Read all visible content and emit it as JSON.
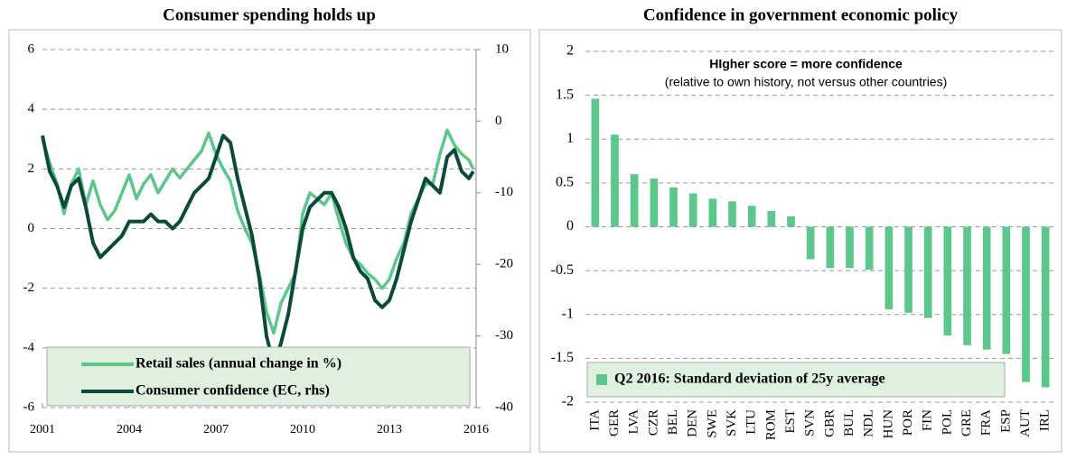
{
  "chart_data": [
    {
      "type": "line",
      "title": "Consumer spending holds up",
      "x": [
        2001,
        2001.25,
        2001.5,
        2001.75,
        2002,
        2002.25,
        2002.5,
        2002.75,
        2003,
        2003.25,
        2003.5,
        2003.75,
        2004,
        2004.25,
        2004.5,
        2004.75,
        2005,
        2005.25,
        2005.5,
        2005.75,
        2006,
        2006.25,
        2006.5,
        2006.75,
        2007,
        2007.25,
        2007.5,
        2007.75,
        2008,
        2008.25,
        2008.5,
        2008.75,
        2009,
        2009.25,
        2009.5,
        2009.75,
        2010,
        2010.25,
        2010.5,
        2010.75,
        2011,
        2011.25,
        2011.5,
        2011.75,
        2012,
        2012.25,
        2012.5,
        2012.75,
        2013,
        2013.25,
        2013.5,
        2013.75,
        2014,
        2014.25,
        2014.5,
        2014.75,
        2015,
        2015.25,
        2015.5,
        2015.75,
        2015.9
      ],
      "series": [
        {
          "name": "Retail sales (annual change in %)",
          "color": "#5cc78a",
          "values": [
            3.0,
            2.2,
            1.5,
            0.5,
            1.5,
            2.0,
            0.8,
            1.6,
            0.8,
            0.3,
            0.6,
            1.2,
            1.8,
            1.0,
            1.5,
            1.8,
            1.2,
            1.6,
            2.0,
            1.7,
            2.0,
            2.3,
            2.6,
            3.2,
            2.5,
            2.0,
            1.6,
            0.6,
            0.0,
            -0.5,
            -1.5,
            -2.8,
            -3.5,
            -2.5,
            -2.0,
            -1.5,
            0.5,
            1.2,
            1.0,
            0.8,
            1.2,
            0.3,
            -0.5,
            -1.0,
            -1.2,
            -1.5,
            -1.7,
            -2.0,
            -1.7,
            -1.0,
            -0.5,
            0.5,
            1.0,
            1.5,
            1.5,
            2.5,
            3.3,
            2.8,
            2.5,
            2.3,
            2.0
          ]
        },
        {
          "name": "Consumer confidence (EC, rhs)",
          "color": "#0b4a3b",
          "axis": "y2",
          "values": [
            -2,
            -7,
            -9,
            -12,
            -9,
            -8,
            -12,
            -17,
            -19,
            -18,
            -17,
            -16,
            -14,
            -14,
            -14,
            -13,
            -14,
            -14,
            -15,
            -14,
            -12,
            -10,
            -9,
            -8,
            -5,
            -2,
            -3,
            -8,
            -12,
            -16,
            -22,
            -30,
            -34,
            -31,
            -27,
            -21,
            -15,
            -12,
            -11,
            -10,
            -10,
            -12,
            -15,
            -19,
            -21,
            -22,
            -25,
            -26,
            -25,
            -22,
            -18,
            -14,
            -11,
            -8,
            -9,
            -10,
            -5,
            -4,
            -7,
            -8,
            -7
          ]
        }
      ],
      "xlim": [
        2001,
        2016
      ],
      "xticks": [
        2001,
        2004,
        2007,
        2010,
        2013,
        2016
      ],
      "ylim": [
        -6,
        6
      ],
      "yticks": [
        6,
        4,
        2,
        0,
        -2,
        -4,
        -6
      ],
      "y2lim": [
        -40,
        10
      ],
      "y2ticks": [
        10,
        0,
        -10,
        -20,
        -30,
        -40
      ],
      "grid": true,
      "legend": "lower left"
    },
    {
      "type": "bar",
      "title": "Confidence in government economic policy",
      "annotations": [
        "HIgher score = more confidence",
        "(relative to own history, not versus other countries)"
      ],
      "categories": [
        "ITA",
        "GER",
        "LVA",
        "CZR",
        "BEL",
        "DEN",
        "SWE",
        "SVK",
        "LTU",
        "ROM",
        "EST",
        "SVN",
        "GBR",
        "BUL",
        "NDL",
        "HUN",
        "POR",
        "FIN",
        "POL",
        "GRE",
        "FRA",
        "ESP",
        "AUT",
        "IRL"
      ],
      "series": [
        {
          "name": "Q2 2016: Standard deviation of 25y average",
          "color": "#5cc78a",
          "values": [
            1.46,
            1.05,
            0.6,
            0.55,
            0.45,
            0.38,
            0.32,
            0.29,
            0.24,
            0.18,
            0.12,
            -0.37,
            -0.47,
            -0.47,
            -0.49,
            -0.94,
            -0.98,
            -1.04,
            -1.24,
            -1.35,
            -1.4,
            -1.45,
            -1.77,
            -1.83
          ]
        }
      ],
      "ylim": [
        -2,
        2
      ],
      "yticks": [
        2,
        1.5,
        1,
        0.5,
        0,
        -0.5,
        -1,
        -1.5,
        -2
      ],
      "grid": true,
      "legend": "lower left"
    }
  ]
}
